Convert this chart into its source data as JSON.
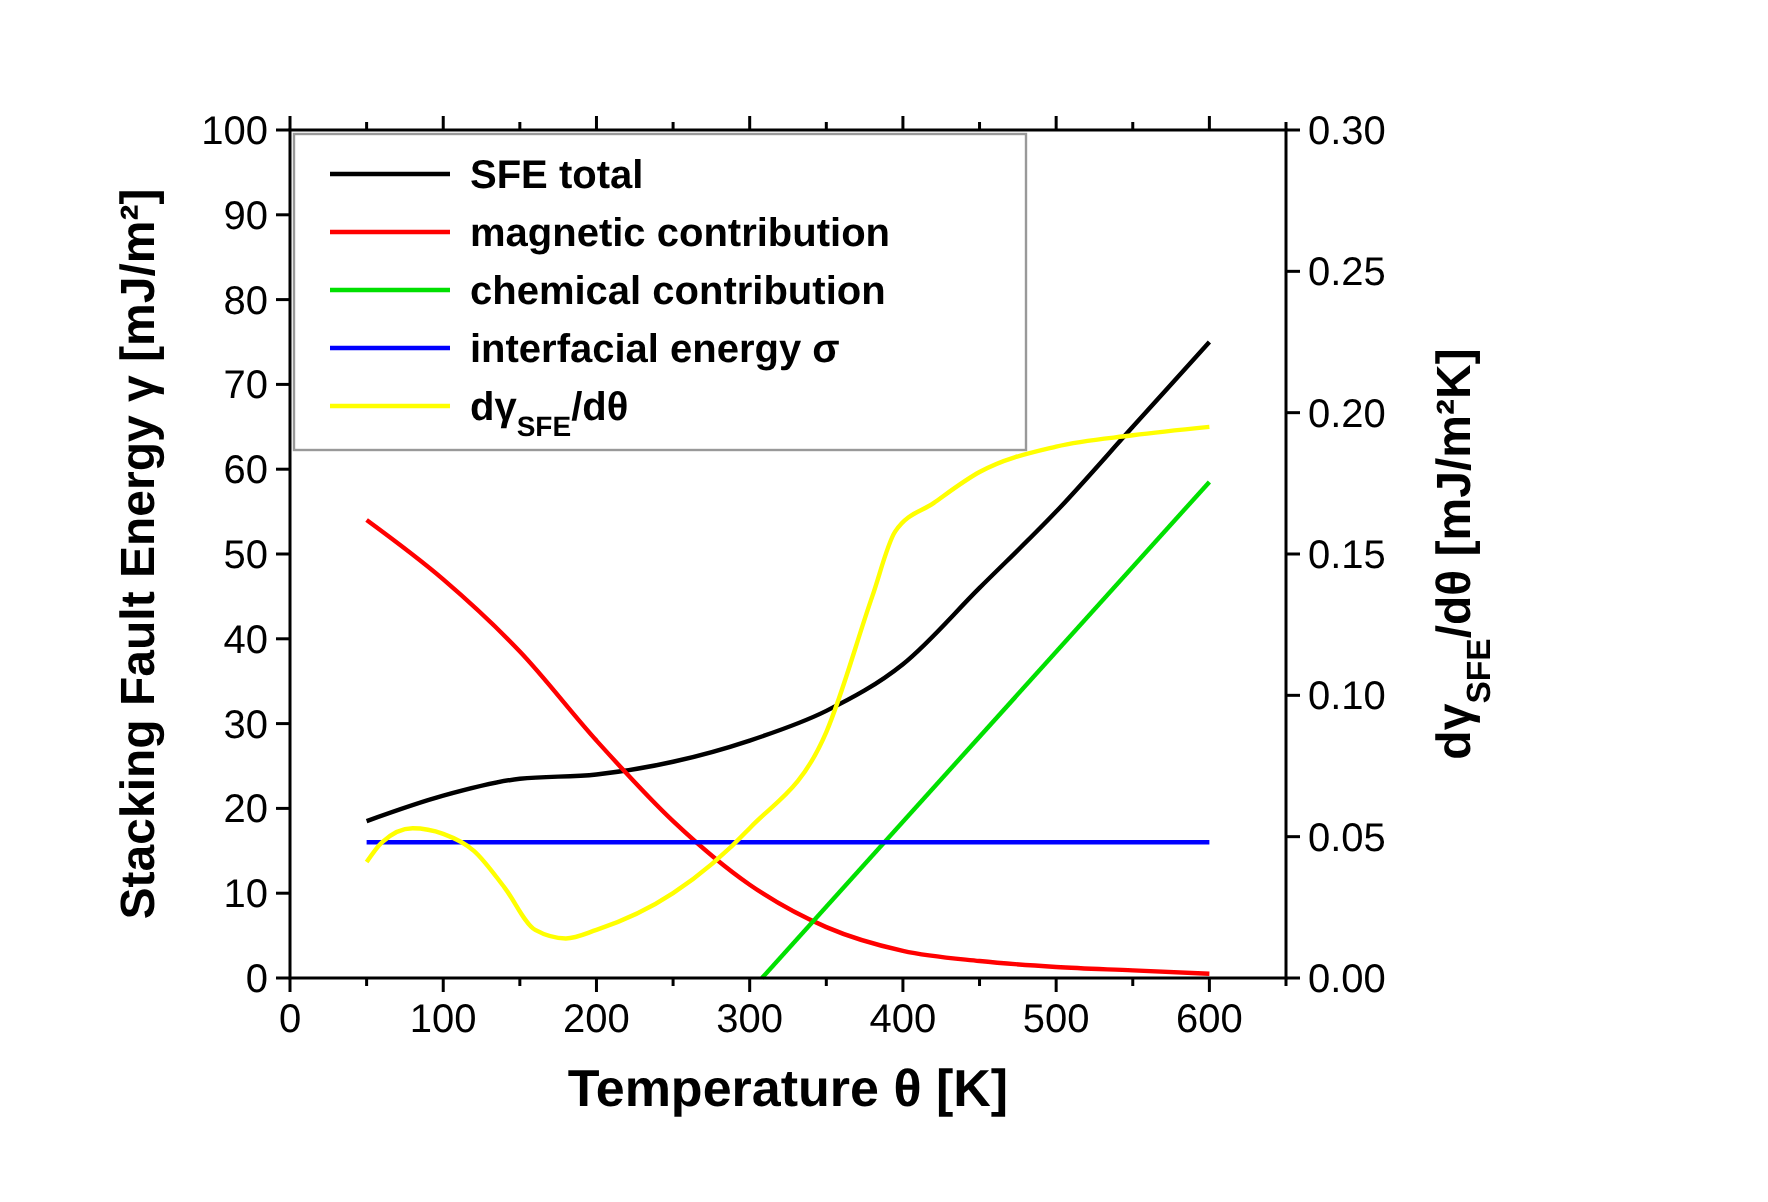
{
  "chart_data": {
    "type": "line",
    "xlabel": "Temperature θ [K]",
    "ylabel": "Stacking Fault Energy γ [mJ/m²]",
    "y2label": "dγ$_{SFE}$/dθ [mJ/m²K]",
    "xlim": [
      0,
      650
    ],
    "xticks": [
      0,
      {
        "value": 50,
        "label": null
      },
      100,
      {
        "value": 150,
        "label": null
      },
      200,
      {
        "value": 250,
        "label": null
      },
      300,
      {
        "value": 350,
        "label": null
      },
      400,
      {
        "value": 450,
        "label": null
      },
      500,
      {
        "value": 550,
        "label": null
      },
      600,
      {
        "value": 650,
        "label": null
      }
    ],
    "ylim": [
      0,
      100
    ],
    "yticks": [
      0,
      10,
      20,
      30,
      40,
      50,
      60,
      70,
      80,
      90,
      100
    ],
    "y2lim": [
      0,
      0.3
    ],
    "y2ticks": [
      {
        "value": 0,
        "label": "0.00"
      },
      {
        "value": 0.05,
        "label": "0.05"
      },
      {
        "value": 0.1,
        "label": "0.10"
      },
      {
        "value": 0.15,
        "label": "0.15"
      },
      {
        "value": 0.2,
        "label": "0.20"
      },
      {
        "value": 0.25,
        "label": "0.25"
      },
      {
        "value": 0.3,
        "label": "0.30"
      }
    ],
    "legend": "top left",
    "grid": false,
    "marker": "none",
    "line_style": "solid",
    "series": [
      {
        "name": "SFE total",
        "color": "#000000",
        "x": [
          50,
          100,
          150,
          200,
          250,
          300,
          350,
          400,
          450,
          500,
          550,
          600
        ],
        "values": [
          18.5,
          21.5,
          23.5,
          24,
          25.5,
          28,
          31.5,
          37,
          46,
          55,
          65,
          75
        ]
      },
      {
        "name": "magnetic contribution",
        "color": "#ff0000",
        "x": [
          50,
          100,
          150,
          200,
          250,
          300,
          350,
          400,
          450,
          500,
          550,
          600
        ],
        "values": [
          54,
          47,
          38.5,
          28,
          18.5,
          11,
          6,
          3.2,
          2,
          1.3,
          0.9,
          0.5
        ]
      },
      {
        "name": "chemical contribution",
        "color": "#00e000",
        "x": [
          308,
          600
        ],
        "values": [
          0,
          58.5
        ]
      },
      {
        "name": "interfacial energy σ",
        "color": "#0000ff",
        "x": [
          50,
          600
        ],
        "values": [
          16,
          16
        ]
      },
      {
        "name": "dγ$_{SFE}$/dθ",
        "color": "#ffff00",
        "axis": "y2",
        "x": [
          50,
          60,
          80,
          100,
          120,
          140,
          160,
          180,
          200,
          250,
          300,
          350,
          380,
          395,
          420,
          450,
          500,
          550,
          600
        ],
        "values": [
          0.041,
          0.048,
          0.053,
          0.051,
          0.045,
          0.032,
          0.017,
          0.014,
          0.017,
          0.03,
          0.053,
          0.087,
          0.135,
          0.158,
          0.168,
          0.179,
          0.188,
          0.192,
          0.195
        ]
      }
    ]
  }
}
